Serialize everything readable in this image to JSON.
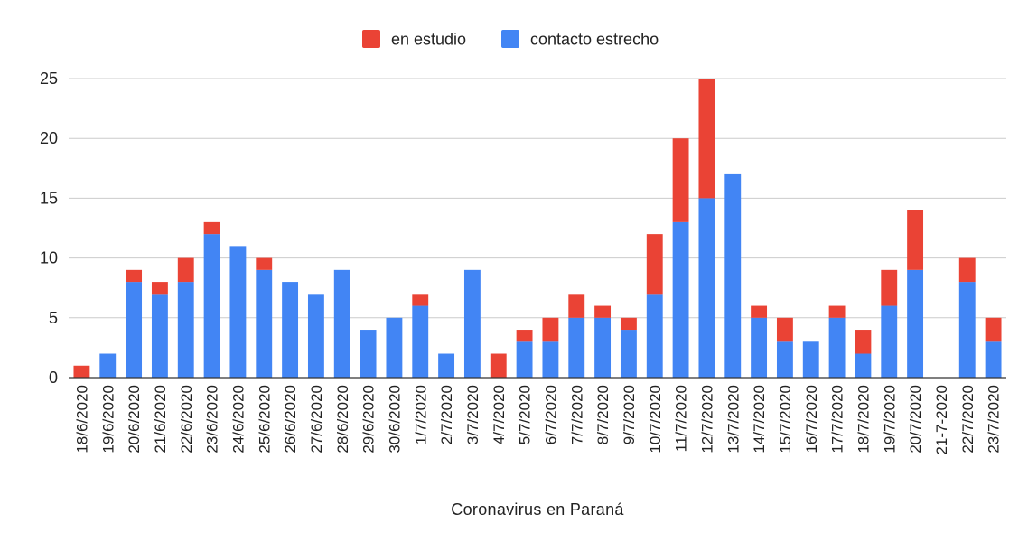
{
  "chart_data": {
    "type": "bar",
    "stacked": true,
    "xlabel": "Coronavirus en Paraná",
    "ylabel": "",
    "ylim": [
      0,
      25
    ],
    "yticks": [
      0,
      5,
      10,
      15,
      20,
      25
    ],
    "grid": true,
    "legend_position": "top",
    "categories": [
      "18/6/2020",
      "19/6/2020",
      "20/6/2020",
      "21/6/2020",
      "22/6/2020",
      "23/6/2020",
      "24/6/2020",
      "25/6/2020",
      "26/6/2020",
      "27/6/2020",
      "28/6/2020",
      "29/6/2020",
      "30/6/2020",
      "1/7/2020",
      "2/7/2020",
      "3/7/2020",
      "4/7/2020",
      "5/7/2020",
      "6/7/2020",
      "7/7/2020",
      "8/7/2020",
      "9/7/2020",
      "10/7/2020",
      "11/7/2020",
      "12/7/2020",
      "13/7/2020",
      "14/7/2020",
      "15/7/2020",
      "16/7/2020",
      "17/7/2020",
      "18/7/2020",
      "19/7/2020",
      "20/7/2020",
      "21-7-2020",
      "22/7/2020",
      "23/7/2020"
    ],
    "series": [
      {
        "name": "contacto estrecho",
        "color": "#4285f4",
        "values": [
          0,
          2,
          8,
          7,
          8,
          12,
          11,
          9,
          8,
          7,
          9,
          4,
          5,
          6,
          2,
          9,
          0,
          3,
          3,
          5,
          5,
          4,
          7,
          13,
          15,
          17,
          5,
          3,
          3,
          5,
          2,
          6,
          9,
          0,
          8,
          3
        ]
      },
      {
        "name": "en estudio",
        "color": "#ea4335",
        "values": [
          1,
          0,
          1,
          1,
          2,
          1,
          0,
          1,
          0,
          0,
          0,
          0,
          0,
          1,
          0,
          0,
          2,
          1,
          2,
          2,
          1,
          1,
          5,
          7,
          10,
          0,
          1,
          2,
          0,
          1,
          2,
          3,
          5,
          0,
          2,
          2
        ]
      }
    ],
    "legend_order": [
      "en estudio",
      "contacto estrecho"
    ]
  }
}
